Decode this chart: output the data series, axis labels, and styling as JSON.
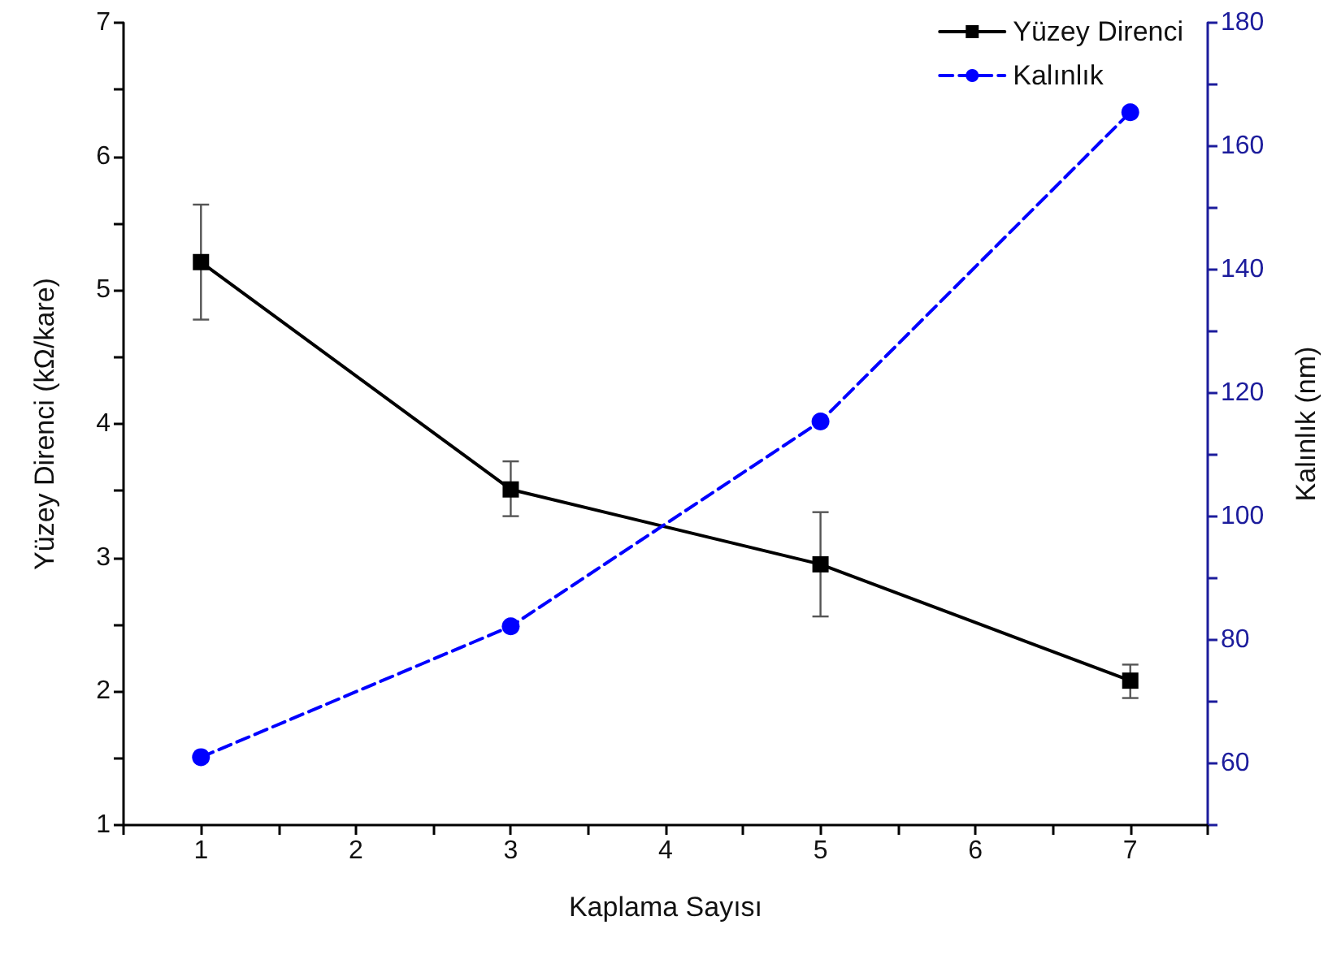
{
  "chart_data": {
    "type": "line",
    "xlabel": "Kaplama Sayısı",
    "ylabel": "Yüzey Direnci (kΩ/kare)",
    "y2label": "Kalınlık (nm)",
    "x": [
      1,
      3,
      5,
      7
    ],
    "series": [
      {
        "name": "Yüzey Direnci",
        "color": "#000000",
        "marker": "square",
        "line_style": "solid",
        "values": [
          5.21,
          3.51,
          2.95,
          2.08
        ],
        "errors": [
          [
            4.78,
            5.64
          ],
          [
            3.31,
            3.72
          ],
          [
            2.56,
            3.34
          ],
          [
            1.95,
            2.2
          ]
        ]
      },
      {
        "name": "Kalınlık",
        "color": "#0000ff",
        "marker": "circle",
        "line_style": "dashed",
        "axis": "y2",
        "values": [
          61,
          82.2,
          115.4,
          165.5
        ]
      }
    ],
    "xlim": [
      0.5,
      7.5
    ],
    "xticks": [
      {
        "value": 0.5,
        "label": null
      },
      1,
      {
        "value": 1.5,
        "label": null
      },
      2,
      {
        "value": 2.5,
        "label": null
      },
      3,
      {
        "value": 3.5,
        "label": null
      },
      4,
      {
        "value": 4.5,
        "label": null
      },
      5,
      {
        "value": 5.5,
        "label": null
      },
      6,
      {
        "value": 6.5,
        "label": null
      },
      7,
      {
        "value": 7.5,
        "label": null
      }
    ],
    "ylim": [
      1,
      7
    ],
    "yticks": [
      1,
      {
        "value": 1.5,
        "label": null
      },
      2,
      {
        "value": 2.5,
        "label": null
      },
      3,
      {
        "value": 3.5,
        "label": null
      },
      4,
      {
        "value": 4.5,
        "label": null
      },
      5,
      {
        "value": 5.5,
        "label": null
      },
      6,
      {
        "value": 6.5,
        "label": null
      },
      7
    ],
    "y2lim": [
      50,
      180
    ],
    "y2ticks": [
      {
        "value": 50,
        "label": null
      },
      60,
      {
        "value": 70,
        "label": null
      },
      80,
      {
        "value": 90,
        "label": null
      },
      100,
      {
        "value": 110,
        "label": null
      },
      120,
      {
        "value": 130,
        "label": null
      },
      140,
      {
        "value": 150,
        "label": null
      },
      160,
      {
        "value": 170,
        "label": null
      },
      180
    ],
    "grid": false,
    "legend": "top right"
  }
}
